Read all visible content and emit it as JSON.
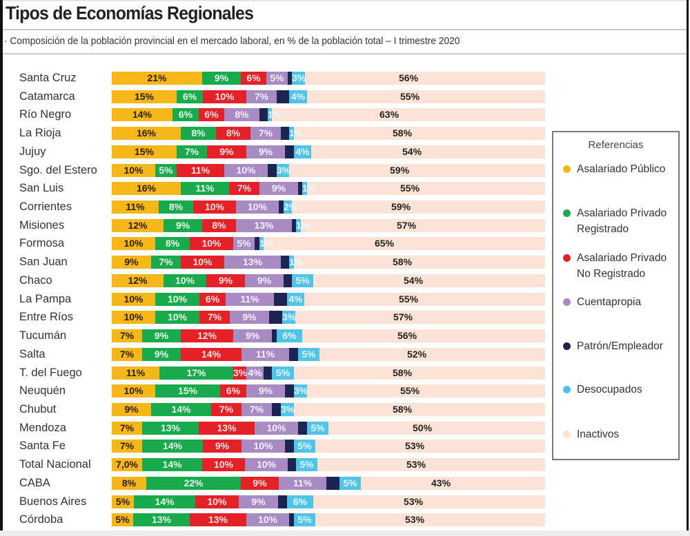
{
  "page": {
    "title": "Tipos de Economías Regionales",
    "subtitle": "· Composición de la población provincial en el mercado laboral, en % de la población total – I trimestre 2020"
  },
  "colors": {
    "asalariado_publico": "#F5B818",
    "privado_registrado": "#1AAA4E",
    "privado_no_registrado": "#E42127",
    "cuentapropia": "#A98BC4",
    "patron": "#1D2451",
    "desocupados": "#4FC3E8",
    "inactivos": "#FBE3D6"
  },
  "legend": {
    "title": "Referencias",
    "items": [
      {
        "label": "Asalariado Público",
        "color": "#F5B818"
      },
      {
        "label": "Asalariado Privado Registrado",
        "color": "#1AAA4E"
      },
      {
        "label": "Asalariado Privado No Registrado",
        "color": "#E42127"
      },
      {
        "label": "Cuentapropia",
        "color": "#A98BC4"
      },
      {
        "label": "Patrón/Empleador",
        "color": "#1D2451"
      },
      {
        "label": "Desocupados",
        "color": "#4FC3E8"
      },
      {
        "label": "Inactivos",
        "color": "#FBE3D6"
      }
    ]
  },
  "chart_data": {
    "type": "bar",
    "orientation": "horizontal",
    "stacked": true,
    "title": "Tipos de Economías Regionales",
    "subtitle": "Composición de la población provincial en el mercado laboral, en % de la población total – I trimestre 2020",
    "xlabel": "",
    "ylabel": "",
    "xlim": [
      0,
      100
    ],
    "grid": false,
    "legend_position": "right",
    "categories": [
      "Santa Cruz",
      "Catamarca",
      "Río Negro",
      "La Rioja",
      "Jujuy",
      "Sgo. del Estero",
      "San Luis",
      "Corrientes",
      "Misiones",
      "Formosa",
      "San Juan",
      "Chaco",
      "La Pampa",
      "Entre Ríos",
      "Tucumán",
      "Salta",
      "T. del Fuego",
      "Neuquén",
      "Chubut",
      "Mendoza",
      "Santa Fe",
      "Total Nacional",
      "CABA",
      "Buenos Aires",
      "Córdoba"
    ],
    "series": [
      {
        "name": "Asalariado Público",
        "key": "asalariado_publico",
        "values": [
          21,
          15,
          14,
          16,
          15,
          10,
          16,
          11,
          12,
          10,
          9,
          12,
          10,
          10,
          7,
          7,
          11,
          10,
          9,
          7,
          7,
          7.0,
          8,
          5,
          5
        ],
        "labels": [
          "21%",
          "15%",
          "14%",
          "16%",
          "15%",
          "10%",
          "16%",
          "11%",
          "12%",
          "10%",
          "9%",
          "12%",
          "10%",
          "10%",
          "7%",
          "7%",
          "11%",
          "10%",
          "9%",
          "7%",
          "7%",
          "7,0%",
          "8%",
          "5%",
          "5%"
        ]
      },
      {
        "name": "Asalariado Privado Registrado",
        "key": "privado_registrado",
        "values": [
          9,
          6,
          6,
          8,
          7,
          5,
          11,
          8,
          9,
          8,
          7,
          10,
          10,
          10,
          9,
          9,
          17,
          15,
          14,
          13,
          14,
          14,
          22,
          14,
          13
        ],
        "labels": [
          "9%",
          "6%",
          "6%",
          "8%",
          "7%",
          "5%",
          "11%",
          "8%",
          "9%",
          "8%",
          "7%",
          "10%",
          "10%",
          "10%",
          "9%",
          "9%",
          "17%",
          "15%",
          "14%",
          "13%",
          "14%",
          "14%",
          "22%",
          "14%",
          "13%"
        ]
      },
      {
        "name": "Asalariado Privado No Registrado",
        "key": "privado_no_registrado",
        "values": [
          6,
          10,
          6,
          8,
          9,
          11,
          7,
          10,
          8,
          10,
          10,
          9,
          6,
          7,
          12,
          14,
          3,
          6,
          7,
          13,
          9,
          10,
          9,
          10,
          13
        ],
        "labels": [
          "6%",
          "10%",
          "6%",
          "8%",
          "9%",
          "11%",
          "7%",
          "10%",
          "8%",
          "10%",
          "10%",
          "9%",
          "6%",
          "7%",
          "12%",
          "14%",
          "3%",
          "6%",
          "7%",
          "13%",
          "9%",
          "10%",
          "9%",
          "10%",
          "13%"
        ]
      },
      {
        "name": "Cuentapropia",
        "key": "cuentapropia",
        "values": [
          5,
          7,
          8,
          7,
          9,
          10,
          9,
          10,
          13,
          5,
          13,
          9,
          11,
          9,
          9,
          11,
          4,
          9,
          7,
          10,
          10,
          10,
          11,
          9,
          10
        ],
        "labels": [
          "5%",
          "7%",
          "8%",
          "7%",
          "9%",
          "10%",
          "9%",
          "10%",
          "13%",
          "5%",
          "13%",
          "9%",
          "11%",
          "9%",
          "9%",
          "11%",
          "4%",
          "9%",
          "7%",
          "10%",
          "10%",
          "10%",
          "11%",
          "9%",
          "10%"
        ]
      },
      {
        "name": "Patrón/Empleador",
        "key": "patron",
        "values": [
          1,
          3,
          2,
          2,
          2,
          2,
          1,
          1,
          1,
          1,
          2,
          2,
          3,
          3,
          1,
          2,
          2,
          2,
          2,
          2,
          2,
          2,
          3,
          2,
          1
        ],
        "labels": [
          "",
          "",
          "",
          "",
          "",
          "",
          "",
          "",
          "",
          "",
          "",
          "",
          "",
          "",
          "",
          "",
          "",
          "",
          "",
          "",
          "",
          "",
          "",
          "",
          ""
        ]
      },
      {
        "name": "Desocupados",
        "key": "desocupados",
        "values": [
          3,
          4,
          1,
          1,
          4,
          3,
          1,
          2,
          1,
          1,
          1,
          5,
          4,
          3,
          6,
          5,
          5,
          3,
          3,
          5,
          5,
          5,
          5,
          6,
          5
        ],
        "labels": [
          "3%",
          "4%",
          "1%",
          "1%",
          "4%",
          "3%",
          "1%",
          "2%",
          "1%",
          "1%",
          "1%",
          "5%",
          "4%",
          "3%",
          "6%",
          "5%",
          "5%",
          "3%",
          "3%",
          "5%",
          "5%",
          "5%",
          "5%",
          "6%",
          "5%"
        ]
      },
      {
        "name": "Inactivos",
        "key": "inactivos",
        "values": [
          56,
          55,
          63,
          58,
          54,
          59,
          55,
          59,
          57,
          65,
          58,
          54,
          55,
          57,
          56,
          52,
          58,
          55,
          58,
          50,
          53,
          53,
          43,
          53,
          53
        ],
        "labels": [
          "56%",
          "55%",
          "63%",
          "58%",
          "54%",
          "59%",
          "55%",
          "59%",
          "57%",
          "65%",
          "58%",
          "54%",
          "55%",
          "57%",
          "56%",
          "52%",
          "58%",
          "55%",
          "58%",
          "50%",
          "53%",
          "53%",
          "43%",
          "53%",
          "53%"
        ]
      }
    ]
  }
}
